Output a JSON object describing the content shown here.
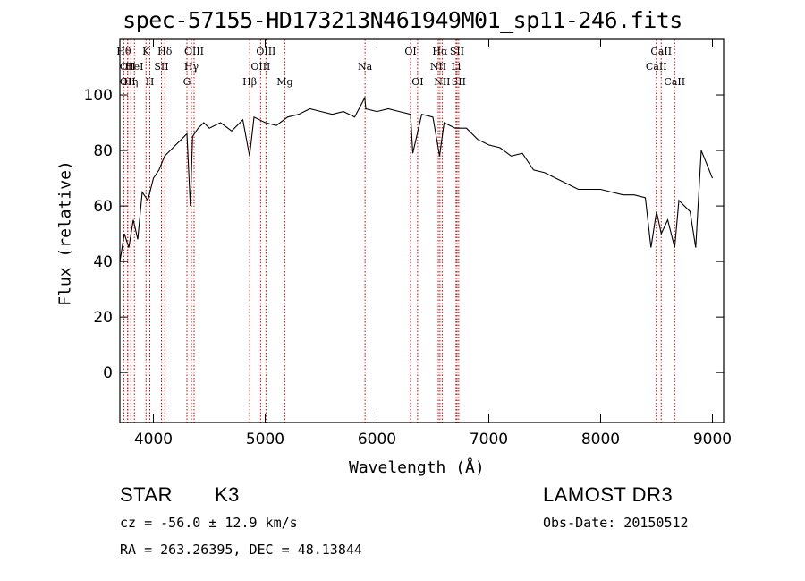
{
  "chart_data": {
    "type": "line",
    "title": "spec-57155-HD173213N461949M01_sp11-246.fits",
    "xlabel": "Wavelength (Å)",
    "ylabel": "Flux (relative)",
    "xlim": [
      3700,
      9100
    ],
    "ylim": [
      -18,
      120
    ],
    "xticks": [
      "4000",
      "5000",
      "6000",
      "7000",
      "8000",
      "9000"
    ],
    "yticks": [
      "0",
      "20",
      "40",
      "60",
      "80",
      "100"
    ],
    "series": [
      {
        "name": "spectrum",
        "x": [
          3700,
          3740,
          3780,
          3820,
          3860,
          3900,
          3950,
          4000,
          4050,
          4100,
          4150,
          4200,
          4250,
          4300,
          4330,
          4350,
          4400,
          4450,
          4500,
          4600,
          4700,
          4800,
          4860,
          4900,
          5000,
          5100,
          5200,
          5300,
          5400,
          5500,
          5600,
          5700,
          5800,
          5890,
          5900,
          6000,
          6100,
          6200,
          6300,
          6320,
          6400,
          6500,
          6560,
          6600,
          6700,
          6800,
          6900,
          7000,
          7100,
          7200,
          7300,
          7400,
          7500,
          7600,
          7700,
          7800,
          7900,
          8000,
          8100,
          8200,
          8300,
          8400,
          8450,
          8500,
          8542,
          8600,
          8662,
          8700,
          8800,
          8850,
          8900,
          8950,
          9000
        ],
        "values": [
          40,
          50,
          45,
          55,
          48,
          65,
          62,
          70,
          73,
          78,
          80,
          82,
          84,
          86,
          60,
          85,
          88,
          90,
          88,
          90,
          87,
          91,
          78,
          92,
          90,
          89,
          92,
          93,
          95,
          94,
          93,
          94,
          92,
          99,
          95,
          94,
          95,
          94,
          93,
          79,
          93,
          92,
          78,
          90,
          88,
          88,
          84,
          82,
          81,
          78,
          79,
          73,
          72,
          70,
          68,
          66,
          66,
          66,
          65,
          64,
          64,
          63,
          45,
          58,
          50,
          55,
          45,
          62,
          58,
          45,
          80,
          75,
          70
        ]
      }
    ],
    "line_labels": [
      {
        "x": 3735,
        "row": 1,
        "text": "Hθ"
      },
      {
        "x": 3770,
        "row": 2,
        "text": "OII"
      },
      {
        "x": 3770,
        "row": 3,
        "text": "OII"
      },
      {
        "x": 3798,
        "row": 3,
        "text": "Hη"
      },
      {
        "x": 3830,
        "row": 2,
        "text": "HeI"
      },
      {
        "x": 3934,
        "row": 1,
        "text": "K"
      },
      {
        "x": 3968,
        "row": 3,
        "text": "H"
      },
      {
        "x": 4072,
        "row": 2,
        "text": "SII"
      },
      {
        "x": 4102,
        "row": 1,
        "text": "Hδ"
      },
      {
        "x": 4300,
        "row": 3,
        "text": "G"
      },
      {
        "x": 4340,
        "row": 2,
        "text": "Hγ"
      },
      {
        "x": 4364,
        "row": 1,
        "text": "OIII"
      },
      {
        "x": 4861,
        "row": 3,
        "text": "Hβ"
      },
      {
        "x": 4959,
        "row": 2,
        "text": "OIII"
      },
      {
        "x": 5007,
        "row": 1,
        "text": "OIII"
      },
      {
        "x": 5175,
        "row": 3,
        "text": "Mg"
      },
      {
        "x": 5893,
        "row": 2,
        "text": "Na"
      },
      {
        "x": 6300,
        "row": 1,
        "text": "OI"
      },
      {
        "x": 6363,
        "row": 3,
        "text": "OI"
      },
      {
        "x": 6548,
        "row": 2,
        "text": "NII"
      },
      {
        "x": 6563,
        "row": 1,
        "text": "Hα"
      },
      {
        "x": 6583,
        "row": 3,
        "text": "NII"
      },
      {
        "x": 6707,
        "row": 2,
        "text": "Li"
      },
      {
        "x": 6716,
        "row": 1,
        "text": "SII"
      },
      {
        "x": 6731,
        "row": 3,
        "text": "SII"
      },
      {
        "x": 8498,
        "row": 2,
        "text": "CaII"
      },
      {
        "x": 8542,
        "row": 1,
        "text": "CaII"
      },
      {
        "x": 8662,
        "row": 3,
        "text": "CaII"
      }
    ]
  },
  "info": {
    "class": "STAR",
    "subclass": "K3",
    "survey": "LAMOST DR3",
    "cz": "cz = -56.0 ± 12.9 km/s",
    "obsdate": "Obs-Date: 20150512",
    "coords": "RA = 263.26395, DEC =  48.13844"
  },
  "colors": {
    "line": "#000000",
    "marker": "#cc0000",
    "axis": "#000000"
  }
}
